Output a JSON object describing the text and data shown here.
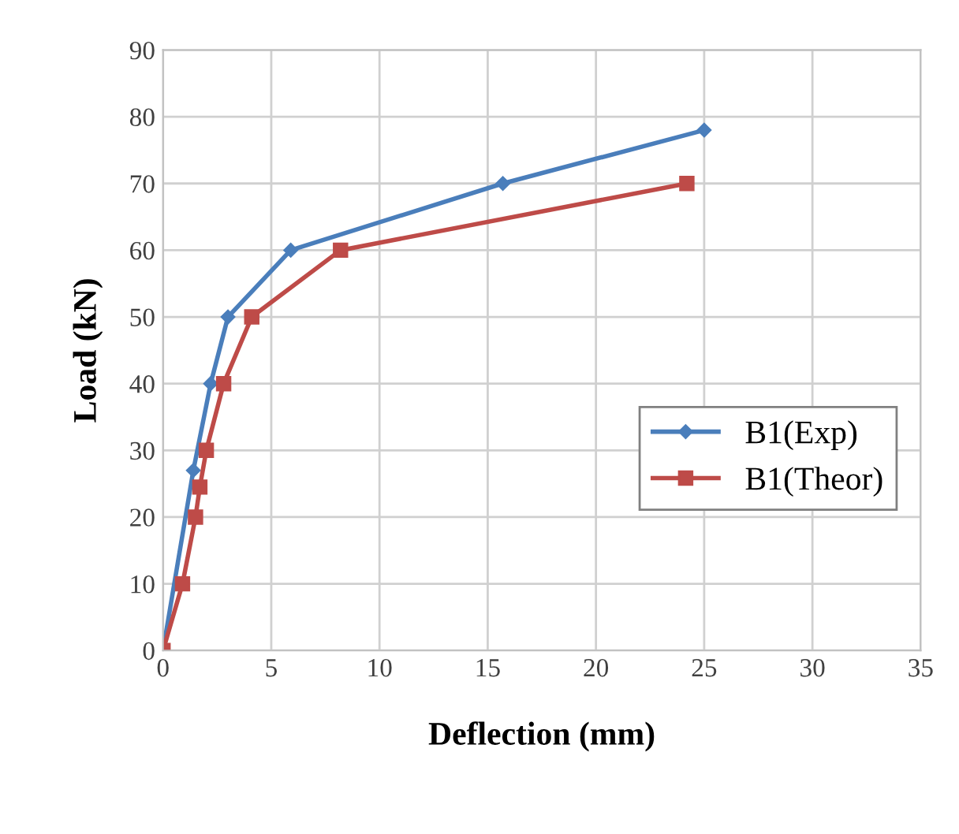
{
  "chart_data": {
    "type": "line",
    "xlabel": "Deflection (mm)",
    "ylabel": "Load (kN)",
    "xlim": [
      0,
      35
    ],
    "ylim": [
      0,
      90
    ],
    "xticks": [
      0,
      5,
      10,
      15,
      20,
      25,
      30,
      35
    ],
    "yticks": [
      0,
      10,
      20,
      30,
      40,
      50,
      60,
      70,
      80,
      90
    ],
    "grid": true,
    "legend": "right",
    "series": [
      {
        "name": "B1(Exp)",
        "color": "#4a7ebb",
        "marker": "diamond",
        "x": [
          0,
          1.4,
          2.2,
          3.0,
          5.9,
          15.7,
          25.0
        ],
        "values": [
          0,
          27,
          40,
          50,
          60,
          70,
          78
        ]
      },
      {
        "name": "B1(Theor)",
        "color": "#be4b48",
        "marker": "square",
        "x": [
          0,
          0.9,
          1.5,
          1.7,
          2.0,
          2.8,
          4.1,
          8.2,
          24.2
        ],
        "values": [
          0,
          10,
          20,
          24.5,
          30,
          40,
          50,
          60,
          70
        ]
      }
    ]
  }
}
